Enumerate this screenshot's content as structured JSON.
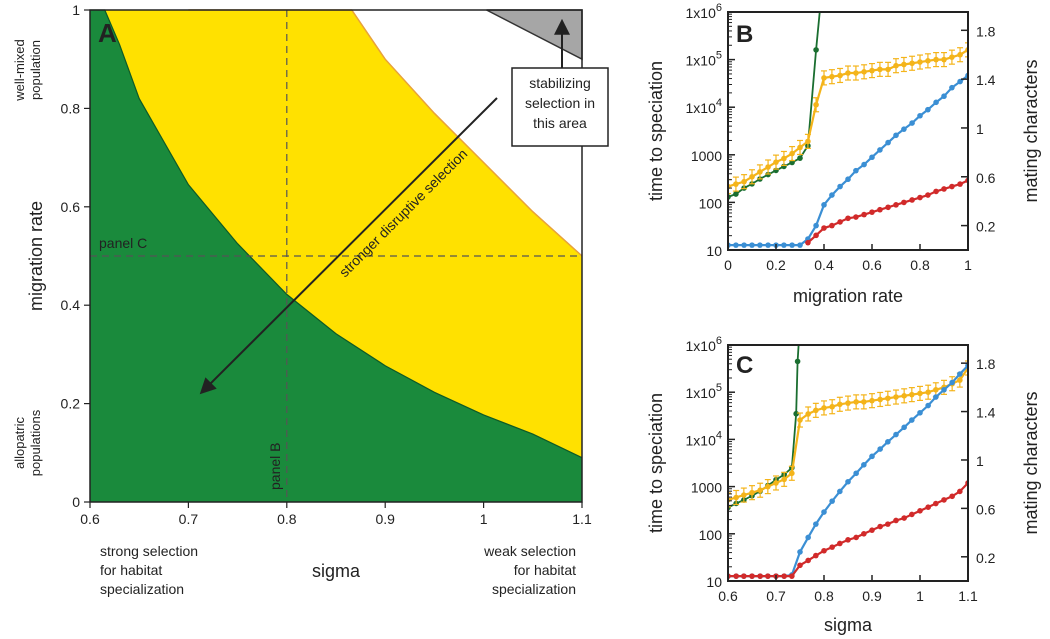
{
  "chart_data": [
    {
      "panel": "A",
      "type": "area",
      "xlabel": "sigma",
      "ylabel": "migration rate",
      "xlim": [
        0.6,
        1.1
      ],
      "ylim": [
        0,
        1
      ],
      "xticks": [
        "0.6",
        "0.7",
        "0.8",
        "0.9",
        "1",
        "1.1"
      ],
      "yticks": [
        "0",
        "0.2",
        "0.4",
        "0.6",
        "0.8",
        "1"
      ],
      "y_side_labels": {
        "top": "well-mixed population",
        "bottom": "allopatric populations"
      },
      "x_side_labels": {
        "left": "strong selection for habitat specialization",
        "right": "weak selection for habitat specialization"
      },
      "regions": [
        {
          "color": "#1a8a3c",
          "boundary_upper": [
            [
              0.6,
              1.0
            ],
            [
              0.615,
              1.0
            ],
            [
              0.63,
              0.93
            ],
            [
              0.65,
              0.82
            ],
            [
              0.7,
              0.645
            ],
            [
              0.75,
              0.525
            ],
            [
              0.8,
              0.422
            ],
            [
              0.85,
              0.342
            ],
            [
              0.9,
              0.277
            ],
            [
              0.95,
              0.223
            ],
            [
              1.0,
              0.177
            ],
            [
              1.05,
              0.138
            ],
            [
              1.1,
              0.09
            ]
          ]
        },
        {
          "color": "#ffe100",
          "boundary_upper": [
            [
              0.7,
              1.0
            ],
            [
              0.75,
              1.0
            ],
            [
              0.8,
              1.0
            ],
            [
              0.85,
              1.0
            ],
            [
              0.866,
              1.0
            ],
            [
              0.9,
              0.9
            ],
            [
              0.95,
              0.79
            ],
            [
              1.0,
              0.69
            ],
            [
              1.05,
              0.59
            ],
            [
              1.1,
              0.5
            ]
          ]
        },
        {
          "color": "#a6a6a6",
          "polygon": [
            [
              1.003,
              1.0
            ],
            [
              1.1,
              1.0
            ],
            [
              1.1,
              0.9
            ]
          ]
        }
      ],
      "guides": [
        {
          "orientation": "horizontal",
          "value": 0.5,
          "label": "panel C"
        },
        {
          "orientation": "vertical",
          "value": 0.8,
          "label": "panel B"
        }
      ],
      "annotations": [
        {
          "text": "stronger disruptive selection",
          "arrow_from": [
            1.03,
            0.82
          ],
          "arrow_to": [
            0.68,
            0.22
          ]
        },
        {
          "text": "stabilizing selection in this area",
          "arrow_to": [
            1.04,
            0.97
          ]
        }
      ]
    },
    {
      "panel": "B",
      "type": "line",
      "xlabel": "migration rate",
      "ylabel": "time to speciation",
      "y2label": "mating characters",
      "xlim": [
        0,
        1
      ],
      "ylim": [
        10,
        1000000
      ],
      "yscale": "log",
      "y2lim": [
        0,
        1.95
      ],
      "xticks": [
        "0",
        "0.2",
        "0.4",
        "0.6",
        "0.8",
        "1"
      ],
      "yticks": [
        "10",
        "100",
        "1000",
        "1x10^4",
        "1x10^5",
        "1x10^6"
      ],
      "y2ticks": [
        "0.2",
        "0.6",
        "1",
        "1.4",
        "1.8"
      ],
      "series": [
        {
          "color": "#1a6e30",
          "axis": "left",
          "x": [
            0,
            0.033,
            0.067,
            0.1,
            0.133,
            0.167,
            0.2,
            0.233,
            0.267,
            0.3,
            0.333,
            0.367,
            0.383,
            0.4
          ],
          "y": [
            130,
            150,
            200,
            245,
            310,
            385,
            470,
            570,
            690,
            850,
            1550,
            160000,
            1100000,
            10000000
          ]
        },
        {
          "color": "#f4b41a",
          "axis": "right",
          "x": [
            0,
            0.033,
            0.067,
            0.1,
            0.133,
            0.167,
            0.2,
            0.233,
            0.267,
            0.3,
            0.333,
            0.367,
            0.4,
            0.433,
            0.467,
            0.5,
            0.533,
            0.567,
            0.6,
            0.633,
            0.667,
            0.7,
            0.733,
            0.767,
            0.8,
            0.833,
            0.867,
            0.9,
            0.933,
            0.967,
            1.0
          ],
          "y": [
            0.52,
            0.54,
            0.56,
            0.6,
            0.64,
            0.68,
            0.72,
            0.75,
            0.79,
            0.84,
            0.89,
            1.19,
            1.41,
            1.42,
            1.43,
            1.45,
            1.45,
            1.46,
            1.47,
            1.48,
            1.48,
            1.51,
            1.52,
            1.53,
            1.54,
            1.55,
            1.56,
            1.56,
            1.58,
            1.6,
            1.64
          ]
        },
        {
          "color": "#3b8fd4",
          "axis": "right",
          "x": [
            0,
            0.033,
            0.067,
            0.1,
            0.133,
            0.167,
            0.2,
            0.233,
            0.267,
            0.3,
            0.333,
            0.367,
            0.4,
            0.433,
            0.467,
            0.5,
            0.533,
            0.567,
            0.6,
            0.633,
            0.667,
            0.7,
            0.733,
            0.767,
            0.8,
            0.833,
            0.867,
            0.9,
            0.933,
            0.967,
            1.0
          ],
          "y": [
            0.04,
            0.04,
            0.04,
            0.04,
            0.04,
            0.04,
            0.04,
            0.04,
            0.04,
            0.04,
            0.09,
            0.2,
            0.37,
            0.45,
            0.52,
            0.58,
            0.65,
            0.7,
            0.76,
            0.82,
            0.88,
            0.94,
            0.99,
            1.04,
            1.1,
            1.15,
            1.21,
            1.26,
            1.33,
            1.38,
            1.43
          ]
        },
        {
          "color": "#d12a2a",
          "axis": "right",
          "x": [
            0.333,
            0.367,
            0.4,
            0.433,
            0.467,
            0.5,
            0.533,
            0.567,
            0.6,
            0.633,
            0.667,
            0.7,
            0.733,
            0.767,
            0.8,
            0.833,
            0.867,
            0.9,
            0.933,
            0.967,
            1.0
          ],
          "y": [
            0.06,
            0.12,
            0.18,
            0.2,
            0.23,
            0.26,
            0.27,
            0.29,
            0.31,
            0.33,
            0.35,
            0.37,
            0.39,
            0.41,
            0.43,
            0.45,
            0.48,
            0.5,
            0.52,
            0.54,
            0.57
          ]
        }
      ]
    },
    {
      "panel": "C",
      "type": "line",
      "xlabel": "sigma",
      "ylabel": "time to speciation",
      "y2label": "mating characters",
      "xlim": [
        0.6,
        1.1
      ],
      "ylim": [
        10,
        1000000
      ],
      "yscale": "log",
      "y2lim": [
        0,
        1.95
      ],
      "xticks": [
        "0.6",
        "0.7",
        "0.8",
        "0.9",
        "1",
        "1.1"
      ],
      "yticks": [
        "10",
        "100",
        "1000",
        "1x10^4",
        "1x10^5",
        "1x10^6"
      ],
      "y2ticks": [
        "0.2",
        "0.6",
        "1",
        "1.4",
        "1.8"
      ],
      "series": [
        {
          "color": "#1a6e30",
          "axis": "left",
          "x": [
            0.6,
            0.617,
            0.633,
            0.65,
            0.667,
            0.683,
            0.7,
            0.717,
            0.733,
            0.742,
            0.745,
            0.75
          ],
          "y": [
            360,
            440,
            520,
            640,
            800,
            1050,
            1400,
            1800,
            2500,
            35000,
            450000,
            3000000
          ]
        },
        {
          "color": "#f4b41a",
          "axis": "right",
          "x": [
            0.6,
            0.617,
            0.633,
            0.65,
            0.667,
            0.683,
            0.7,
            0.717,
            0.733,
            0.75,
            0.767,
            0.783,
            0.8,
            0.817,
            0.833,
            0.85,
            0.867,
            0.883,
            0.9,
            0.917,
            0.933,
            0.95,
            0.967,
            0.983,
            1.0,
            1.017,
            1.033,
            1.05,
            1.067,
            1.083,
            1.1
          ],
          "y": [
            0.67,
            0.69,
            0.71,
            0.73,
            0.75,
            0.78,
            0.81,
            0.84,
            0.89,
            1.33,
            1.38,
            1.41,
            1.43,
            1.44,
            1.46,
            1.47,
            1.48,
            1.48,
            1.49,
            1.5,
            1.51,
            1.52,
            1.53,
            1.54,
            1.55,
            1.56,
            1.58,
            1.6,
            1.63,
            1.66,
            1.76
          ]
        },
        {
          "color": "#3b8fd4",
          "axis": "right",
          "x": [
            0.6,
            0.617,
            0.633,
            0.65,
            0.667,
            0.683,
            0.7,
            0.717,
            0.733,
            0.75,
            0.767,
            0.783,
            0.8,
            0.817,
            0.833,
            0.85,
            0.867,
            0.883,
            0.9,
            0.917,
            0.933,
            0.95,
            0.967,
            0.983,
            1.0,
            1.017,
            1.033,
            1.05,
            1.067,
            1.083,
            1.1
          ],
          "y": [
            0.04,
            0.04,
            0.04,
            0.04,
            0.04,
            0.04,
            0.04,
            0.04,
            0.05,
            0.24,
            0.36,
            0.47,
            0.57,
            0.66,
            0.74,
            0.82,
            0.89,
            0.96,
            1.03,
            1.09,
            1.15,
            1.21,
            1.27,
            1.33,
            1.39,
            1.45,
            1.52,
            1.58,
            1.64,
            1.71,
            1.78
          ]
        },
        {
          "color": "#d12a2a",
          "axis": "right",
          "x": [
            0.6,
            0.617,
            0.633,
            0.65,
            0.667,
            0.683,
            0.7,
            0.717,
            0.733,
            0.75,
            0.767,
            0.783,
            0.8,
            0.817,
            0.833,
            0.85,
            0.867,
            0.883,
            0.9,
            0.917,
            0.933,
            0.95,
            0.967,
            0.983,
            1.0,
            1.017,
            1.033,
            1.05,
            1.067,
            1.083,
            1.1
          ],
          "y": [
            0.04,
            0.04,
            0.04,
            0.04,
            0.04,
            0.04,
            0.04,
            0.04,
            0.04,
            0.13,
            0.17,
            0.21,
            0.25,
            0.28,
            0.31,
            0.34,
            0.36,
            0.39,
            0.42,
            0.45,
            0.47,
            0.5,
            0.52,
            0.55,
            0.58,
            0.61,
            0.64,
            0.67,
            0.7,
            0.74,
            0.81
          ]
        }
      ]
    }
  ],
  "labels": {
    "panel_a": "A",
    "panel_b": "B",
    "panel_c": "C",
    "a_xlabel": "sigma",
    "a_ylabel": "migration rate",
    "a_top_side": [
      "well-mixed",
      "population"
    ],
    "a_bottom_side": [
      "allopatric",
      "populations"
    ],
    "a_left_under": [
      "strong selection",
      "for habitat",
      "specialization"
    ],
    "a_right_under": [
      "weak selection",
      "for habitat",
      "specialization"
    ],
    "panel_c_guide": "panel C",
    "panel_b_guide": "panel B",
    "arrow_text": "stronger disruptive selection",
    "box_text": [
      "stabilizing",
      "selection in",
      "this area"
    ],
    "b_xlabel": "migration rate",
    "c_xlabel": "sigma",
    "left_ylabel": "time to speciation",
    "right_ylabel": "mating characters"
  }
}
